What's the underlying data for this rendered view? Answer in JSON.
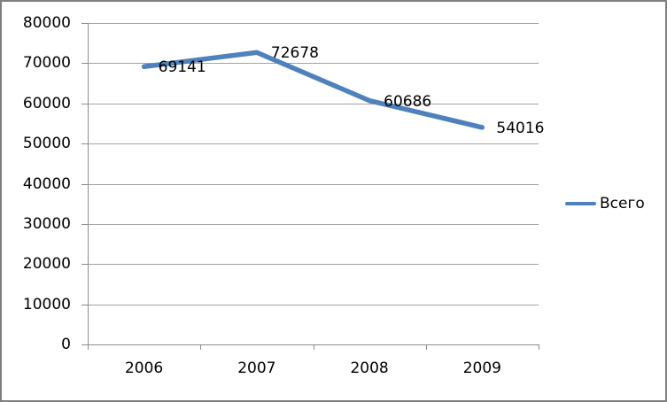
{
  "chart_data": {
    "type": "line",
    "categories": [
      "2006",
      "2007",
      "2008",
      "2009"
    ],
    "series": [
      {
        "name": "Всего",
        "values": [
          69141,
          72678,
          60686,
          54016
        ],
        "color": "#4F81BD"
      }
    ],
    "data_labels": [
      "69141",
      "72678",
      "60686",
      "54016"
    ],
    "title": "",
    "xlabel": "",
    "ylabel": "",
    "ylim": [
      0,
      80000
    ],
    "ytick_step": 10000,
    "ytick_labels": [
      "0",
      "10000",
      "20000",
      "30000",
      "40000",
      "50000",
      "60000",
      "70000",
      "80000"
    ],
    "grid": true,
    "legend": {
      "position": "right",
      "entries": [
        {
          "label": "Всего",
          "color": "#4F81BD"
        }
      ]
    },
    "colors": {
      "gridline": "#a3a3a3",
      "axis": "#8c8c8c",
      "text": "#000000",
      "border": "#7f7f7f",
      "background": "#ffffff",
      "series": "#4F81BD"
    }
  }
}
